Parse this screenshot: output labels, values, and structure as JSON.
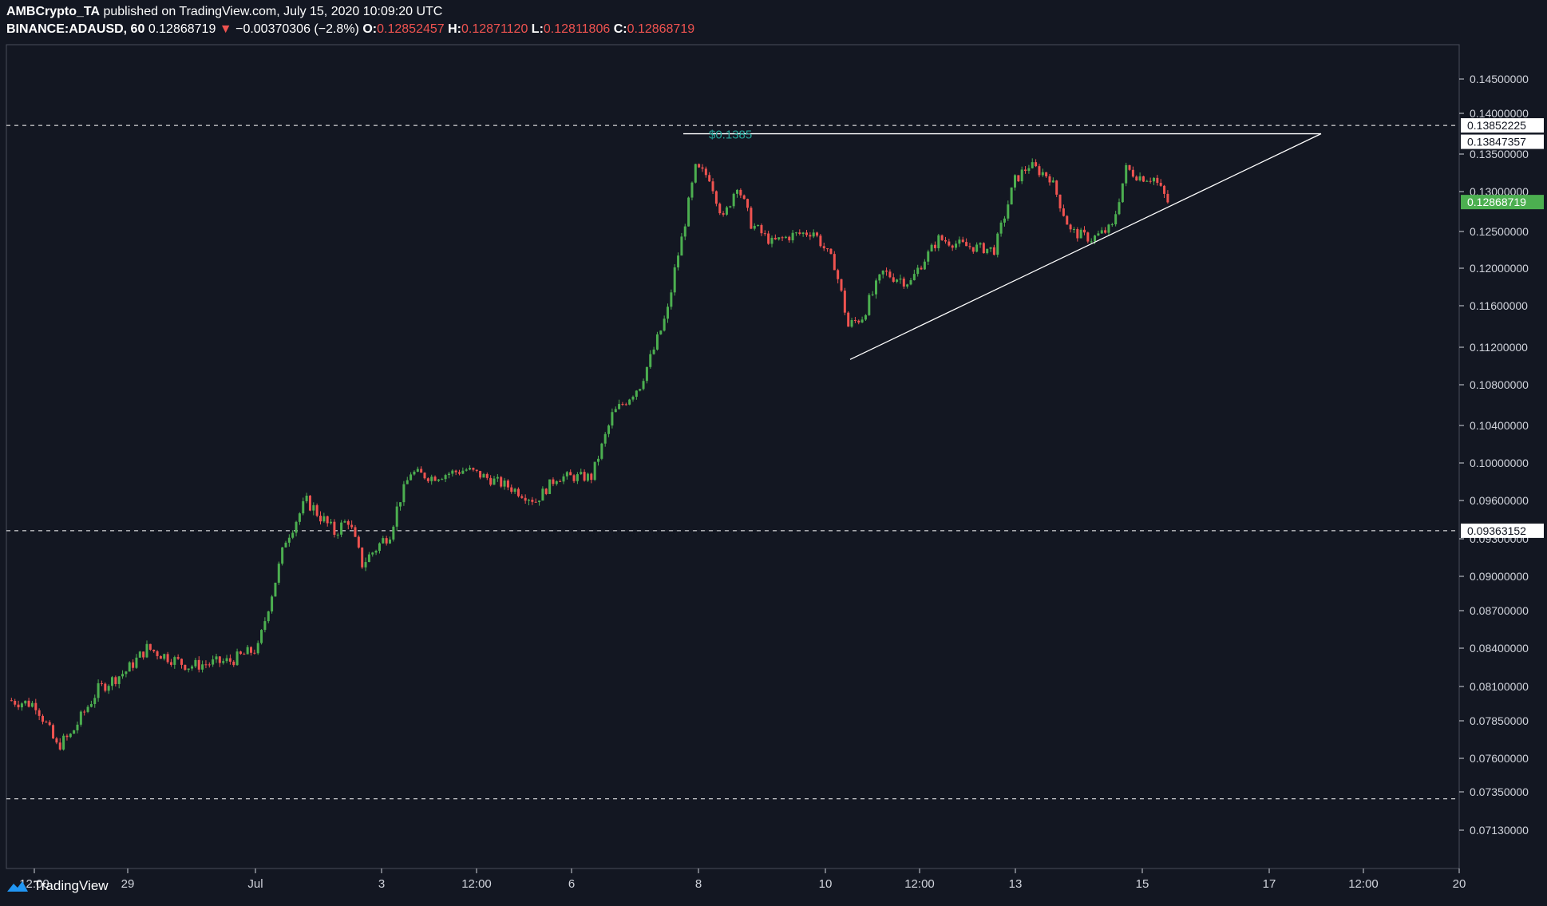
{
  "header": {
    "publisher": "AMBCrypto_TA",
    "published_text": "published on TradingView.com, July 15, 2020 10:09:20 UTC",
    "symbol": "BINANCE:ADAUSD, 60",
    "last": "0.12868719",
    "change": "−0.00370306 (−2.8%)",
    "o_label": "O:",
    "o_value": "0.12852457",
    "h_label": "H:",
    "h_value": "0.12871120",
    "l_label": "L:",
    "l_value": "0.12811806",
    "c_label": "C:",
    "c_value": "0.12868719"
  },
  "footer": {
    "brand": "TradingView"
  },
  "colors": {
    "background": "#131722",
    "up": "#26a69a",
    "up_candle": "#4caf50",
    "down": "#ef5350",
    "grid_line": "#ffffff",
    "price_tag": "#4caf50"
  },
  "chart_data": {
    "type": "candlestick",
    "symbol": "BINANCE:ADAUSD",
    "interval": "60",
    "y_ticks": [
      "0.14500000",
      "0.14000000",
      "0.13500000",
      "0.13000000",
      "0.12500000",
      "0.12000000",
      "0.11600000",
      "0.11200000",
      "0.10800000",
      "0.10400000",
      "0.10000000",
      "0.09600000",
      "0.09300000",
      "0.09000000",
      "0.08700000",
      "0.08400000",
      "0.08100000",
      "0.07850000",
      "0.07600000",
      "0.07350000",
      "0.07130000"
    ],
    "x_ticks": [
      "12:00",
      "29",
      "Jul",
      "3",
      "12:00",
      "6",
      "8",
      "10",
      "12:00",
      "13",
      "15",
      "17",
      "12:00",
      "20"
    ],
    "horizontal_lines": [
      {
        "value": 0.13852225,
        "label": "0.13852225",
        "style": "dashed"
      },
      {
        "value": 0.09363152,
        "label": "0.09363152",
        "style": "dashed"
      },
      {
        "value": 0.0731,
        "style": "dashed"
      }
    ],
    "resistance_label": "0.13847357",
    "current_price_label": "0.12868719",
    "peak_annotation": "$0.1385",
    "pattern": "ascending triangle",
    "price_path": [
      {
        "t": 0.0,
        "p": 0.08
      },
      {
        "t": 2.0,
        "p": 0.0797
      },
      {
        "t": 3.5,
        "p": 0.0768
      },
      {
        "t": 4.5,
        "p": 0.0775
      },
      {
        "t": 6.5,
        "p": 0.0808
      },
      {
        "t": 8.5,
        "p": 0.0822
      },
      {
        "t": 10.0,
        "p": 0.084
      },
      {
        "t": 13.0,
        "p": 0.0826
      },
      {
        "t": 16.0,
        "p": 0.083
      },
      {
        "t": 18.0,
        "p": 0.084
      },
      {
        "t": 20.0,
        "p": 0.093
      },
      {
        "t": 21.5,
        "p": 0.096
      },
      {
        "t": 23.5,
        "p": 0.0935
      },
      {
        "t": 24.5,
        "p": 0.0945
      },
      {
        "t": 25.5,
        "p": 0.091
      },
      {
        "t": 27.5,
        "p": 0.0935
      },
      {
        "t": 29.0,
        "p": 0.099
      },
      {
        "t": 30.5,
        "p": 0.0985
      },
      {
        "t": 33.0,
        "p": 0.0993
      },
      {
        "t": 36.0,
        "p": 0.0975
      },
      {
        "t": 38.0,
        "p": 0.096
      },
      {
        "t": 39.5,
        "p": 0.0985
      },
      {
        "t": 42.0,
        "p": 0.0985
      },
      {
        "t": 43.5,
        "p": 0.105
      },
      {
        "t": 45.5,
        "p": 0.108
      },
      {
        "t": 47.5,
        "p": 0.1155
      },
      {
        "t": 48.5,
        "p": 0.124
      },
      {
        "t": 49.5,
        "p": 0.133
      },
      {
        "t": 50.5,
        "p": 0.132
      },
      {
        "t": 51.5,
        "p": 0.1265
      },
      {
        "t": 52.5,
        "p": 0.131
      },
      {
        "t": 53.5,
        "p": 0.126
      },
      {
        "t": 55.0,
        "p": 0.1235
      },
      {
        "t": 56.5,
        "p": 0.1245
      },
      {
        "t": 58.0,
        "p": 0.125
      },
      {
        "t": 59.5,
        "p": 0.1205
      },
      {
        "t": 60.5,
        "p": 0.114
      },
      {
        "t": 61.5,
        "p": 0.115
      },
      {
        "t": 63.0,
        "p": 0.1195
      },
      {
        "t": 65.0,
        "p": 0.1185
      },
      {
        "t": 67.0,
        "p": 0.124
      },
      {
        "t": 69.0,
        "p": 0.123
      },
      {
        "t": 71.0,
        "p": 0.1225
      },
      {
        "t": 72.5,
        "p": 0.1315
      },
      {
        "t": 73.5,
        "p": 0.1335
      },
      {
        "t": 75.0,
        "p": 0.132
      },
      {
        "t": 76.5,
        "p": 0.125
      },
      {
        "t": 78.0,
        "p": 0.124
      },
      {
        "t": 79.5,
        "p": 0.1255
      },
      {
        "t": 80.5,
        "p": 0.133
      },
      {
        "t": 81.5,
        "p": 0.132
      },
      {
        "t": 82.5,
        "p": 0.1318
      },
      {
        "t": 83.5,
        "p": 0.1287
      }
    ]
  }
}
